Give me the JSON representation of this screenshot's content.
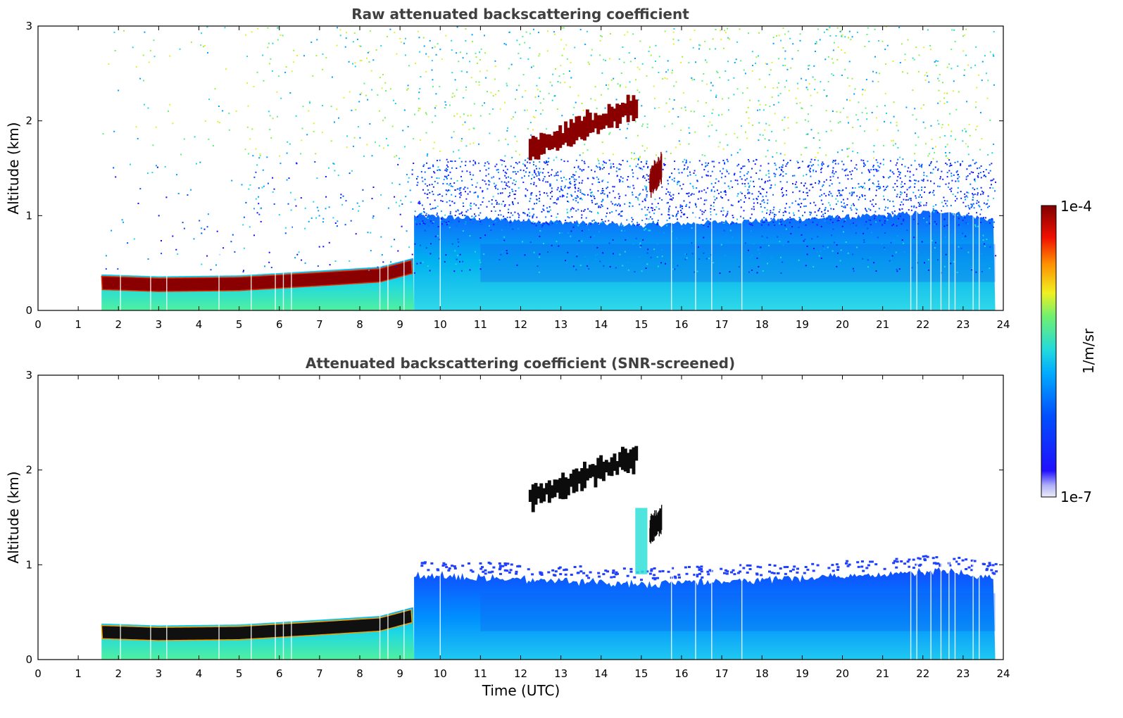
{
  "chart_data": [
    {
      "type": "heatmap",
      "title": "Raw attenuated backscattering coefficient",
      "xlabel": "",
      "ylabel": "Altitude (km)",
      "xlim": [
        0,
        24
      ],
      "ylim": [
        0,
        3
      ],
      "xticks": [
        "0",
        "1",
        "2",
        "3",
        "4",
        "5",
        "6",
        "7",
        "8",
        "9",
        "10",
        "11",
        "12",
        "13",
        "14",
        "15",
        "16",
        "17",
        "18",
        "19",
        "20",
        "21",
        "22",
        "23",
        "24"
      ],
      "yticks": [
        "0",
        "1",
        "2",
        "3"
      ],
      "data_start_hour": 1.58,
      "data_end_hour": 23.8,
      "surface_layer_top_km": [
        [
          1.6,
          0.38
        ],
        [
          3,
          0.36
        ],
        [
          5,
          0.37
        ],
        [
          7,
          0.42
        ],
        [
          8.5,
          0.46
        ],
        [
          9.3,
          0.55
        ]
      ],
      "aerosol_layer_top_km": [
        [
          9.4,
          1.0
        ],
        [
          12,
          0.95
        ],
        [
          15,
          0.9
        ],
        [
          18,
          0.95
        ],
        [
          21,
          1.0
        ],
        [
          22.5,
          1.05
        ],
        [
          23.8,
          0.95
        ]
      ],
      "cloud_segments": [
        {
          "x_start": 12.2,
          "x_end": 14.9,
          "alt_start_km": 1.7,
          "alt_end_km": 2.15
        },
        {
          "x_start": 15.2,
          "x_end": 15.5,
          "alt_start_km": 1.35,
          "alt_end_km": 1.5
        }
      ]
    },
    {
      "type": "heatmap",
      "title": "Attenuated backscattering coefficient (SNR-screened)",
      "xlabel": "Time (UTC)",
      "ylabel": "Altitude (km)",
      "xlim": [
        0,
        24
      ],
      "ylim": [
        0,
        3
      ],
      "xticks": [
        "0",
        "1",
        "2",
        "3",
        "4",
        "5",
        "6",
        "7",
        "8",
        "9",
        "10",
        "11",
        "12",
        "13",
        "14",
        "15",
        "16",
        "17",
        "18",
        "19",
        "20",
        "21",
        "22",
        "23",
        "24"
      ],
      "yticks": [
        "0",
        "1",
        "2",
        "3"
      ],
      "data_start_hour": 1.58,
      "data_end_hour": 23.8
    }
  ],
  "colorbar": {
    "label": "1/m/sr",
    "max_label": "1e-4",
    "min_label": "1e-7",
    "scale": "log",
    "colors": [
      "#e8e8f8",
      "#3020ff",
      "#0060ff",
      "#00a0ff",
      "#20d8e0",
      "#60f080",
      "#f0f020",
      "#ff8000",
      "#e81000",
      "#800000"
    ]
  }
}
